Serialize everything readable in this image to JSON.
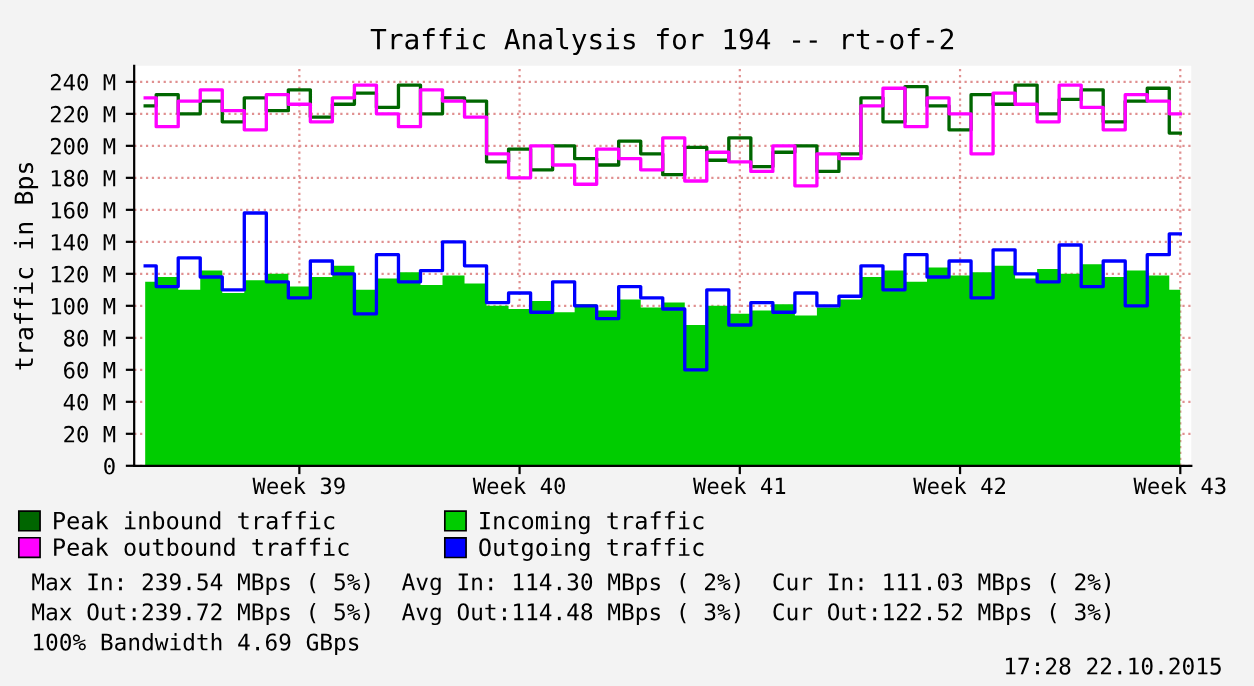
{
  "chart_data": {
    "type": "step",
    "title": "Traffic Analysis for 194 -- rt-of-2",
    "ylabel": "traffic in Bps",
    "categories": [
      null,
      null,
      null,
      null,
      null,
      null,
      null,
      "Week 39",
      null,
      null,
      null,
      null,
      null,
      null,
      null,
      null,
      null,
      "Week 40",
      null,
      null,
      null,
      null,
      null,
      null,
      null,
      null,
      null,
      "Week 41",
      null,
      null,
      null,
      null,
      null,
      null,
      null,
      null,
      null,
      "Week 42",
      null,
      null,
      null,
      null,
      null,
      null,
      null,
      null,
      null,
      "Week 43"
    ],
    "series": [
      {
        "name": "Peak inbound traffic",
        "color": "#006600",
        "values": [
          225,
          232,
          220,
          228,
          215,
          230,
          222,
          235,
          218,
          226,
          233,
          224,
          238,
          220,
          230,
          228,
          190,
          198,
          185,
          200,
          192,
          188,
          203,
          195,
          182,
          199,
          191,
          205,
          187,
          196,
          200,
          184,
          195,
          230,
          215,
          237,
          225,
          210,
          232,
          226,
          238,
          220,
          229,
          235,
          215,
          228,
          236,
          208
        ]
      },
      {
        "name": "Incoming traffic",
        "type": "area",
        "color": "#00cc00",
        "values": [
          115,
          118,
          110,
          122,
          108,
          116,
          120,
          112,
          118,
          125,
          110,
          117,
          121,
          113,
          119,
          114,
          100,
          98,
          103,
          96,
          101,
          97,
          104,
          99,
          102,
          88,
          100,
          95,
          97,
          101,
          94,
          99,
          104,
          118,
          122,
          115,
          124,
          119,
          121,
          125,
          117,
          123,
          120,
          126,
          118,
          122,
          119,
          110
        ]
      },
      {
        "name": "Peak outbound traffic",
        "color": "#ff00ff",
        "values": [
          230,
          212,
          228,
          235,
          222,
          210,
          232,
          226,
          215,
          230,
          238,
          220,
          212,
          235,
          228,
          218,
          195,
          180,
          200,
          188,
          176,
          198,
          192,
          185,
          205,
          178,
          196,
          190,
          184,
          200,
          175,
          195,
          192,
          225,
          236,
          212,
          230,
          220,
          195,
          233,
          226,
          215,
          238,
          224,
          210,
          232,
          228,
          220
        ]
      },
      {
        "name": "Outgoing traffic",
        "color": "#0000ff",
        "values": [
          125,
          112,
          130,
          118,
          110,
          158,
          115,
          105,
          128,
          120,
          95,
          132,
          115,
          122,
          140,
          125,
          102,
          108,
          96,
          115,
          100,
          92,
          112,
          105,
          98,
          60,
          110,
          88,
          102,
          96,
          108,
          100,
          106,
          125,
          110,
          132,
          118,
          128,
          105,
          135,
          120,
          115,
          138,
          112,
          128,
          100,
          132,
          145
        ]
      }
    ],
    "ylim": [
      0,
      250
    ],
    "yticks": [
      {
        "value": 0,
        "label": "0"
      },
      {
        "value": 20,
        "label": "20 M"
      },
      {
        "value": 40,
        "label": "40 M"
      },
      {
        "value": 60,
        "label": "60 M"
      },
      {
        "value": 80,
        "label": "80 M"
      },
      {
        "value": 100,
        "label": "100 M"
      },
      {
        "value": 120,
        "label": "120 M"
      },
      {
        "value": 140,
        "label": "140 M"
      },
      {
        "value": 160,
        "label": "160 M"
      },
      {
        "value": 180,
        "label": "180 M"
      },
      {
        "value": 200,
        "label": "200 M"
      },
      {
        "value": 220,
        "label": "220 M"
      },
      {
        "value": 240,
        "label": "240 M"
      }
    ],
    "grid": true,
    "legend": "bottom",
    "annotations": [
      "Max In: 239.54 MBps ( 5%)  Avg In: 114.30 MBps ( 2%)  Cur In: 111.03 MBps ( 2%)",
      "Max Out:239.72 MBps ( 5%)  Avg Out:114.48 MBps ( 3%)  Cur Out:122.52 MBps ( 3%)",
      "100% Bandwidth 4.69 GBps",
      "17:28 22.10.2015"
    ]
  }
}
